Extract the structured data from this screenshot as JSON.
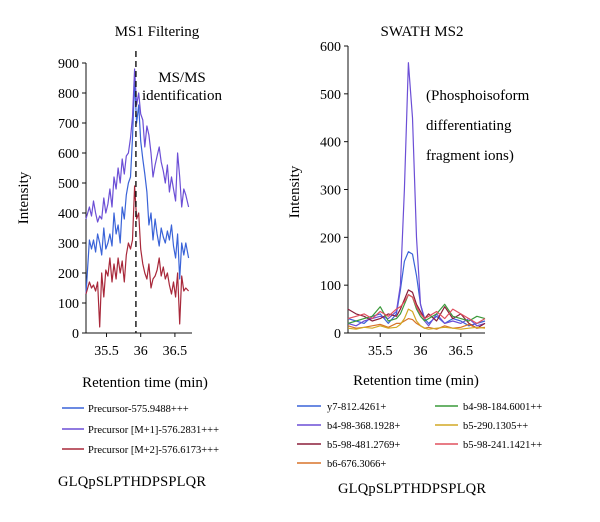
{
  "chart_data": [
    {
      "type": "line",
      "title": "MS1 Filtering",
      "xlabel": "Retention time (min)",
      "ylabel": "Intensity",
      "xlim": [
        35.2,
        36.75
      ],
      "ylim": [
        0,
        900
      ],
      "xticks": [
        "35.5",
        "36",
        "36.5"
      ],
      "xtick_values": [
        35.5,
        36.0,
        36.5
      ],
      "yticks": [
        "0",
        "100",
        "200",
        "300",
        "400",
        "500",
        "600",
        "700",
        "800",
        "900"
      ],
      "ytick_values": [
        0,
        100,
        200,
        300,
        400,
        500,
        600,
        700,
        800,
        900
      ],
      "grid": false,
      "annotation": {
        "text_line1": "MS/MS",
        "text_line2": "identification",
        "x": 35.93
      },
      "peptide": "GLQpSLPTHDPSPLQR",
      "series": [
        {
          "name": "Precursor-575.9488+++",
          "color": "#3a63d8",
          "x": [
            35.2,
            35.25,
            35.28,
            35.31,
            35.34,
            35.37,
            35.4,
            35.43,
            35.46,
            35.49,
            35.52,
            35.55,
            35.58,
            35.61,
            35.64,
            35.67,
            35.7,
            35.73,
            35.76,
            35.79,
            35.82,
            35.85,
            35.88,
            35.91,
            35.94,
            35.97,
            36.0,
            36.03,
            36.06,
            36.09,
            36.12,
            36.15,
            36.18,
            36.21,
            36.24,
            36.27,
            36.3,
            36.33,
            36.36,
            36.39,
            36.42,
            36.45,
            36.48,
            36.51,
            36.54,
            36.57,
            36.6,
            36.63,
            36.66,
            36.7
          ],
          "y": [
            130,
            310,
            280,
            310,
            270,
            330,
            300,
            260,
            350,
            280,
            300,
            330,
            290,
            400,
            330,
            360,
            300,
            420,
            380,
            460,
            500,
            520,
            650,
            840,
            700,
            760,
            640,
            580,
            530,
            470,
            360,
            400,
            310,
            380,
            330,
            290,
            350,
            320,
            300,
            340,
            310,
            360,
            290,
            250,
            330,
            180,
            300,
            260,
            300,
            250
          ]
        },
        {
          "name": "Precursor [M+1]-576.2831+++",
          "color": "#6c4fd6",
          "x": [
            35.2,
            35.25,
            35.28,
            35.31,
            35.34,
            35.37,
            35.4,
            35.43,
            35.46,
            35.49,
            35.52,
            35.55,
            35.58,
            35.61,
            35.64,
            35.67,
            35.7,
            35.73,
            35.76,
            35.79,
            35.82,
            35.85,
            35.88,
            35.91,
            35.94,
            35.97,
            36.0,
            36.03,
            36.06,
            36.09,
            36.12,
            36.15,
            36.18,
            36.21,
            36.24,
            36.27,
            36.3,
            36.33,
            36.36,
            36.39,
            36.42,
            36.45,
            36.48,
            36.51,
            36.54,
            36.57,
            36.6,
            36.63,
            36.66,
            36.7
          ],
          "y": [
            380,
            420,
            390,
            440,
            400,
            370,
            390,
            380,
            450,
            400,
            430,
            480,
            420,
            520,
            480,
            550,
            500,
            580,
            530,
            590,
            600,
            650,
            720,
            880,
            760,
            800,
            730,
            710,
            620,
            690,
            660,
            600,
            520,
            560,
            590,
            620,
            570,
            540,
            500,
            560,
            470,
            520,
            480,
            440,
            600,
            520,
            420,
            480,
            460,
            420
          ]
        },
        {
          "name": "Precursor [M+2]-576.6173+++",
          "color": "#a8283a",
          "x": [
            35.2,
            35.25,
            35.28,
            35.31,
            35.34,
            35.37,
            35.4,
            35.43,
            35.46,
            35.49,
            35.52,
            35.55,
            35.58,
            35.61,
            35.64,
            35.67,
            35.7,
            35.73,
            35.76,
            35.79,
            35.82,
            35.85,
            35.88,
            35.91,
            35.94,
            35.97,
            36.0,
            36.03,
            36.06,
            36.09,
            36.12,
            36.15,
            36.18,
            36.21,
            36.24,
            36.27,
            36.3,
            36.33,
            36.36,
            36.39,
            36.42,
            36.45,
            36.48,
            36.51,
            36.54,
            36.57,
            36.6,
            36.63,
            36.66,
            36.7
          ],
          "y": [
            130,
            170,
            150,
            160,
            140,
            170,
            20,
            200,
            120,
            210,
            190,
            250,
            170,
            230,
            180,
            250,
            200,
            240,
            170,
            260,
            300,
            280,
            310,
            490,
            380,
            400,
            280,
            230,
            200,
            180,
            230,
            150,
            180,
            190,
            210,
            250,
            190,
            220,
            180,
            200,
            160,
            130,
            170,
            120,
            200,
            30,
            190,
            140,
            150,
            140
          ]
        }
      ]
    },
    {
      "type": "line",
      "title": "SWATH MS2",
      "xlabel": "Retention time (min)",
      "ylabel": "Intensity",
      "xlim": [
        35.1,
        36.8
      ],
      "ylim": [
        0,
        600
      ],
      "xticks": [
        "35.5",
        "36",
        "36.5"
      ],
      "xtick_values": [
        35.5,
        36.0,
        36.5
      ],
      "yticks": [
        "0",
        "100",
        "200",
        "300",
        "400",
        "500",
        "600"
      ],
      "ytick_values": [
        0,
        100,
        200,
        300,
        400,
        500,
        600
      ],
      "grid": false,
      "annotation": {
        "line1": "(Phosphoisoform",
        "line2": "differentiating",
        "line3": "fragment ions)"
      },
      "peptide": "GLQpSLPTHDPSPLQR",
      "series": [
        {
          "name": "y7-812.4261+",
          "color": "#3a63d8",
          "x": [
            35.1,
            35.2,
            35.3,
            35.4,
            35.5,
            35.6,
            35.7,
            35.75,
            35.8,
            35.85,
            35.9,
            35.95,
            36.0,
            36.05,
            36.1,
            36.2,
            36.3,
            36.4,
            36.5,
            36.6,
            36.7,
            36.8
          ],
          "y": [
            30,
            25,
            20,
            35,
            40,
            20,
            40,
            90,
            150,
            170,
            165,
            120,
            60,
            30,
            20,
            35,
            20,
            30,
            25,
            15,
            20,
            25
          ]
        },
        {
          "name": "b4-98-368.1928+",
          "color": "#6c4fd6",
          "x": [
            35.1,
            35.2,
            35.3,
            35.4,
            35.5,
            35.6,
            35.7,
            35.75,
            35.8,
            35.85,
            35.9,
            35.95,
            36.0,
            36.05,
            36.1,
            36.2,
            36.3,
            36.4,
            36.5,
            36.6,
            36.7,
            36.8
          ],
          "y": [
            20,
            15,
            25,
            30,
            35,
            30,
            45,
            100,
            300,
            565,
            450,
            200,
            60,
            25,
            15,
            40,
            20,
            25,
            20,
            30,
            15,
            20
          ]
        },
        {
          "name": "b5-98-481.2769+",
          "color": "#8b1e3a",
          "x": [
            35.1,
            35.2,
            35.3,
            35.4,
            35.5,
            35.6,
            35.7,
            35.75,
            35.8,
            35.85,
            35.9,
            35.95,
            36.0,
            36.05,
            36.1,
            36.2,
            36.3,
            36.4,
            36.5,
            36.6,
            36.7,
            36.8
          ],
          "y": [
            50,
            40,
            35,
            25,
            30,
            40,
            35,
            50,
            70,
            90,
            85,
            60,
            45,
            30,
            40,
            25,
            55,
            30,
            40,
            20,
            10,
            20
          ]
        },
        {
          "name": "b6-676.3066+",
          "color": "#d8742a",
          "x": [
            35.1,
            35.2,
            35.3,
            35.4,
            35.5,
            35.6,
            35.7,
            35.75,
            35.8,
            35.85,
            35.9,
            35.95,
            36.0,
            36.05,
            36.1,
            36.2,
            36.3,
            36.4,
            36.5,
            36.6,
            36.7,
            36.8
          ],
          "y": [
            15,
            10,
            12,
            15,
            18,
            12,
            20,
            20,
            25,
            30,
            28,
            20,
            15,
            10,
            12,
            8,
            15,
            10,
            12,
            18,
            10,
            12
          ]
        },
        {
          "name": "b4-98-184.6001++",
          "color": "#3a9a3a",
          "x": [
            35.1,
            35.2,
            35.3,
            35.4,
            35.5,
            35.6,
            35.7,
            35.75,
            35.8,
            35.85,
            35.9,
            35.95,
            36.0,
            36.05,
            36.1,
            36.2,
            36.3,
            36.4,
            36.5,
            36.6,
            36.7,
            36.8
          ],
          "y": [
            20,
            25,
            30,
            35,
            55,
            25,
            30,
            40,
            60,
            80,
            75,
            50,
            35,
            25,
            30,
            40,
            60,
            35,
            30,
            25,
            35,
            30
          ]
        },
        {
          "name": "b5-290.1305++",
          "color": "#d2a825",
          "x": [
            35.1,
            35.2,
            35.3,
            35.4,
            35.5,
            35.6,
            35.7,
            35.75,
            35.8,
            35.85,
            35.9,
            35.95,
            36.0,
            36.05,
            36.1,
            36.2,
            36.3,
            36.4,
            36.5,
            36.6,
            36.7,
            36.8
          ],
          "y": [
            10,
            8,
            12,
            10,
            15,
            10,
            12,
            18,
            30,
            50,
            45,
            25,
            15,
            10,
            8,
            10,
            12,
            10,
            8,
            10,
            12,
            10
          ]
        },
        {
          "name": "b5-98-241.1421++",
          "color": "#e0505e",
          "x": [
            35.1,
            35.2,
            35.3,
            35.4,
            35.5,
            35.6,
            35.7,
            35.75,
            35.8,
            35.85,
            35.9,
            35.95,
            36.0,
            36.05,
            36.1,
            36.2,
            36.3,
            36.4,
            36.5,
            36.6,
            36.7,
            36.8
          ],
          "y": [
            30,
            35,
            40,
            30,
            45,
            35,
            50,
            55,
            65,
            80,
            75,
            55,
            40,
            30,
            35,
            45,
            30,
            50,
            40,
            30,
            20,
            30
          ]
        }
      ]
    }
  ]
}
